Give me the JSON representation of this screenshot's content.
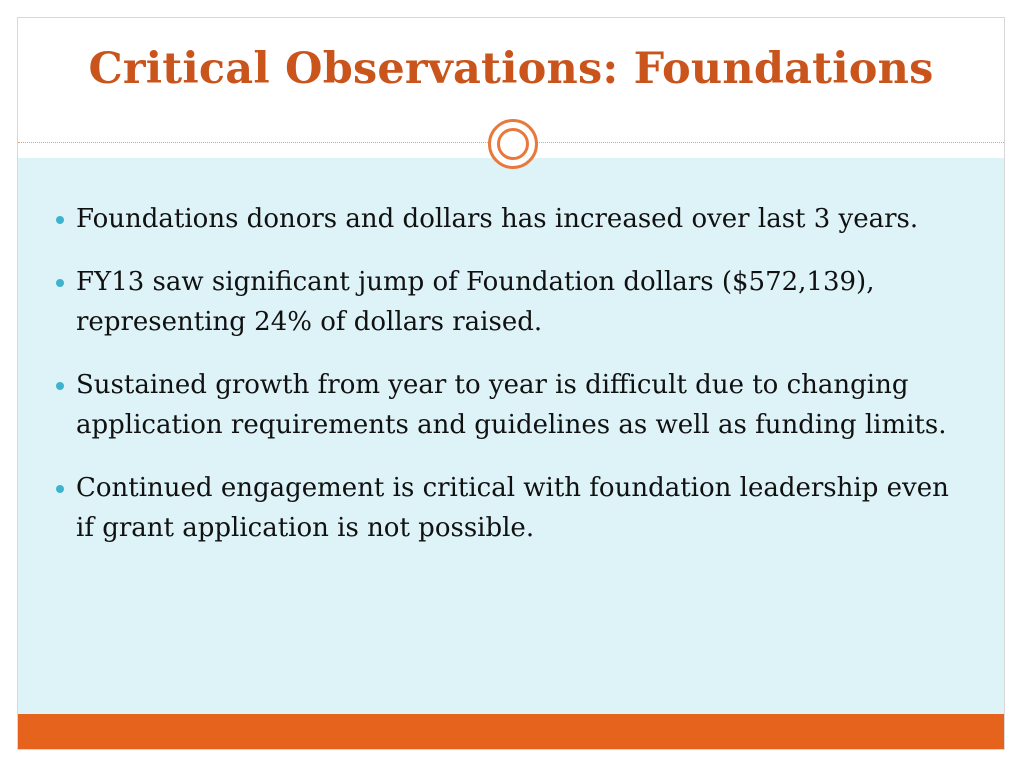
{
  "slide": {
    "title": "Critical Observations: Foundations",
    "bullets": [
      "Foundations donors and dollars has increased over last 3 years.",
      " FY13 saw significant jump of Foundation dollars ($572,139), representing 24% of dollars raised.",
      "Sustained growth from year to year is difficult due to changing application requirements and guidelines as well as funding limits.",
      "Continued engagement is critical with foundation leadership even if grant application is not possible."
    ]
  },
  "colors": {
    "title": "#c9541c",
    "content_background": "#ddf3f8",
    "footer": "#e5631c",
    "bullet": "#3fb3ce",
    "ornament": "#e8793d"
  }
}
